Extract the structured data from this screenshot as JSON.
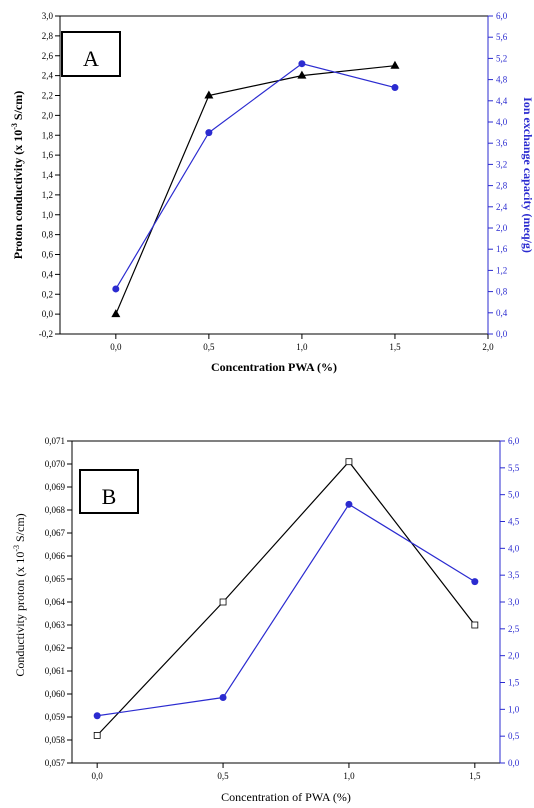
{
  "chart_data": [
    {
      "panel": "A",
      "type": "line",
      "x": [
        0.0,
        0.5,
        1.0,
        1.5
      ],
      "xlabel": "Concentration PWA (%)",
      "xlim": [
        -0.3,
        2.0
      ],
      "xticks": [
        "0,0",
        "0,5",
        "1,0",
        "1,5",
        "2,0"
      ],
      "xtick_values": [
        0.0,
        0.5,
        1.0,
        1.5,
        2.0
      ],
      "ylabel_left": "Proton conductivity (x 10",
      "ylabel_left_sup": "-3",
      "ylabel_left_unit": " S/cm)",
      "ylim_left": [
        -0.2,
        3.0
      ],
      "yticks_left": [
        "-0,2",
        "0,0",
        "0,2",
        "0,4",
        "0,6",
        "0,8",
        "1,0",
        "1,2",
        "1,4",
        "1,6",
        "1,8",
        "2,0",
        "2,2",
        "2,4",
        "2,6",
        "2,8",
        "3,0"
      ],
      "ytick_values_left": [
        -0.2,
        0.0,
        0.2,
        0.4,
        0.6,
        0.8,
        1.0,
        1.2,
        1.4,
        1.6,
        1.8,
        2.0,
        2.2,
        2.4,
        2.6,
        2.8,
        3.0
      ],
      "ylabel_right": "Ion exchange capacity (meq/g)",
      "ylim_right": [
        0.0,
        6.0
      ],
      "yticks_right": [
        "0,0",
        "0,4",
        "0,8",
        "1,2",
        "1,6",
        "2,0",
        "2,4",
        "2,8",
        "3,2",
        "3,6",
        "4,0",
        "4,4",
        "4,8",
        "5,2",
        "5,6",
        "6,0"
      ],
      "ytick_values_right": [
        0.0,
        0.4,
        0.8,
        1.2,
        1.6,
        2.0,
        2.4,
        2.8,
        3.2,
        3.6,
        4.0,
        4.4,
        4.8,
        5.2,
        5.6,
        6.0
      ],
      "series": [
        {
          "axis": "left",
          "marker": "triangle",
          "color": "#000000",
          "values": [
            0.0,
            2.2,
            2.4,
            2.5
          ]
        },
        {
          "axis": "right",
          "marker": "circle",
          "color": "#2b2bd0",
          "values": [
            0.85,
            3.8,
            5.1,
            4.65
          ]
        }
      ]
    },
    {
      "panel": "B",
      "type": "line",
      "x": [
        0.0,
        0.5,
        1.0,
        1.5
      ],
      "xlabel": "Concentration of PWA (%)",
      "xlim": [
        -0.1,
        1.6
      ],
      "xticks": [
        "0,0",
        "0,5",
        "1,0",
        "1,5"
      ],
      "xtick_values": [
        0.0,
        0.5,
        1.0,
        1.5
      ],
      "ylabel_left": "Conductivity proton (x 10",
      "ylabel_left_sup": "-3",
      "ylabel_left_unit": " S/cm)",
      "ylim_left": [
        0.057,
        0.071
      ],
      "yticks_left": [
        "0,057",
        "0,058",
        "0,059",
        "0,060",
        "0,061",
        "0,062",
        "0,063",
        "0,064",
        "0,065",
        "0,066",
        "0,067",
        "0,068",
        "0,069",
        "0,070",
        "0,071"
      ],
      "ytick_values_left": [
        0.057,
        0.058,
        0.059,
        0.06,
        0.061,
        0.062,
        0.063,
        0.064,
        0.065,
        0.066,
        0.067,
        0.068,
        0.069,
        0.07,
        0.071
      ],
      "ylim_right": [
        0.0,
        6.0
      ],
      "yticks_right": [
        "0,0",
        "0,5",
        "1,0",
        "1,5",
        "2,0",
        "2,5",
        "3,0",
        "3,5",
        "4,0",
        "4,5",
        "5,0",
        "5,5",
        "6,0"
      ],
      "ytick_values_right": [
        0.0,
        0.5,
        1.0,
        1.5,
        2.0,
        2.5,
        3.0,
        3.5,
        4.0,
        4.5,
        5.0,
        5.5,
        6.0
      ],
      "series": [
        {
          "axis": "left",
          "marker": "square-open",
          "color": "#000000",
          "values": [
            0.0582,
            0.064,
            0.0701,
            0.063
          ]
        },
        {
          "axis": "right",
          "marker": "circle",
          "color": "#2b2bd0",
          "values": [
            0.88,
            1.22,
            4.82,
            3.38
          ]
        }
      ]
    }
  ]
}
